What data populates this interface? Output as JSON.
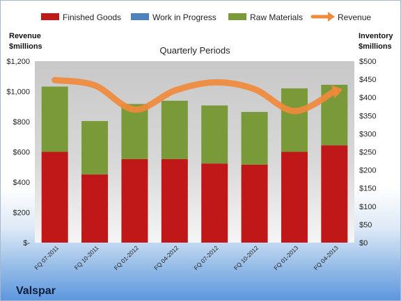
{
  "legend": {
    "finished_goods": "Finished Goods",
    "wip": "Work in Progress",
    "raw_materials": "Raw Materials",
    "revenue": "Revenue"
  },
  "axes": {
    "left_title_line1": "Revenue",
    "left_title_line2": "$millions",
    "right_title_line1": "Inventory",
    "right_title_line2": "$millions"
  },
  "company": "Valspar",
  "colors": {
    "finished_goods": "#c01818",
    "wip": "#4f81bd",
    "raw_materials": "#7a9a3a",
    "revenue": "#f08a3c",
    "plot_bg": "#c9c9c9"
  },
  "chart_data": {
    "type": "bar",
    "title": "Quarterly Periods",
    "categories": [
      "FQ 07-2011",
      "FQ 10-2011",
      "FQ 01-2012",
      "FQ 04-2012",
      "FQ 07-2012",
      "FQ 10-2012",
      "FQ 01-2013",
      "FQ 04-2013"
    ],
    "series": [
      {
        "name": "Finished Goods",
        "kind": "stacked-bar",
        "axis": "right",
        "values": [
          250,
          188,
          230,
          230,
          218,
          215,
          250,
          268
        ]
      },
      {
        "name": "Work in Progress",
        "kind": "stacked-bar",
        "axis": "right",
        "values": [
          0,
          0,
          0,
          0,
          0,
          0,
          0,
          0
        ]
      },
      {
        "name": "Raw Materials",
        "kind": "stacked-bar",
        "axis": "right",
        "values": [
          180,
          147,
          152,
          161,
          160,
          145,
          175,
          167
        ]
      },
      {
        "name": "Revenue",
        "kind": "line",
        "axis": "left",
        "values": [
          1075,
          1040,
          880,
          1005,
          1060,
          1015,
          870,
          1000
        ]
      }
    ],
    "left_axis": {
      "ylim": [
        0,
        1200
      ],
      "ticks": [
        "$-",
        "$200",
        "$400",
        "$600",
        "$800",
        "$1,000",
        "$1,200"
      ]
    },
    "right_axis": {
      "ylim": [
        0,
        500
      ],
      "ticks": [
        "$0",
        "$50",
        "$100",
        "$150",
        "$200",
        "$250",
        "$300",
        "$350",
        "$400",
        "$450",
        "$500"
      ]
    },
    "grid": false,
    "legend_position": "top"
  }
}
